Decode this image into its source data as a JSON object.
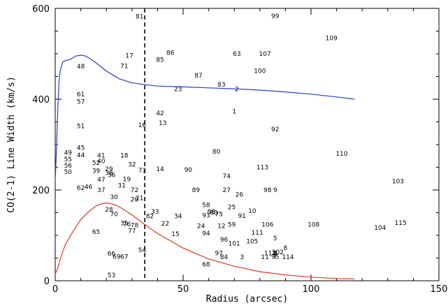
{
  "chart_data": {
    "type": "scatter",
    "title": "",
    "xlabel": "Radius (arcsec)",
    "ylabel": "CO(2-1) Line Width (km/s)",
    "xlim": [
      0,
      150
    ],
    "ylim": [
      0,
      600
    ],
    "x_ticks": [
      0,
      50,
      100,
      150
    ],
    "y_ticks": [
      0,
      200,
      400,
      600
    ],
    "x_tick_labels": [
      "0",
      "50",
      "100",
      "150"
    ],
    "y_tick_labels": [
      "0",
      "200",
      "400",
      "600"
    ],
    "grid": false,
    "vertical_line": {
      "x": 35,
      "style": "dashed",
      "color": "#000000"
    },
    "points": [
      {
        "label": "1",
        "x": 70,
        "y": 373
      },
      {
        "label": "2",
        "x": 71,
        "y": 422
      },
      {
        "label": "3",
        "x": 73,
        "y": 52
      },
      {
        "label": "4",
        "x": 86,
        "y": 60
      },
      {
        "label": "5",
        "x": 86,
        "y": 94
      },
      {
        "label": "6",
        "x": 86,
        "y": 61
      },
      {
        "label": "7",
        "x": 86,
        "y": 53
      },
      {
        "label": "8",
        "x": 90,
        "y": 72
      },
      {
        "label": "9",
        "x": 86,
        "y": 200
      },
      {
        "label": "10",
        "x": 77,
        "y": 154
      },
      {
        "label": "11",
        "x": 82,
        "y": 52
      },
      {
        "label": "12",
        "x": 65,
        "y": 121
      },
      {
        "label": "13",
        "x": 42,
        "y": 348
      },
      {
        "label": "14",
        "x": 41,
        "y": 246
      },
      {
        "label": "15",
        "x": 47,
        "y": 103
      },
      {
        "label": "16",
        "x": 34,
        "y": 343
      },
      {
        "label": "17",
        "x": 29,
        "y": 496
      },
      {
        "label": "18",
        "x": 27,
        "y": 276
      },
      {
        "label": "19",
        "x": 28,
        "y": 224
      },
      {
        "label": "20",
        "x": 31,
        "y": 179
      },
      {
        "label": "21",
        "x": 33,
        "y": 182
      },
      {
        "label": "22",
        "x": 43,
        "y": 126
      },
      {
        "label": "23",
        "x": 48,
        "y": 422
      },
      {
        "label": "24",
        "x": 57,
        "y": 121
      },
      {
        "label": "25",
        "x": 69,
        "y": 162
      },
      {
        "label": "26",
        "x": 72,
        "y": 190
      },
      {
        "label": "27",
        "x": 67,
        "y": 200
      },
      {
        "label": "28",
        "x": 21,
        "y": 157
      },
      {
        "label": "29",
        "x": 21,
        "y": 246
      },
      {
        "label": "30",
        "x": 23,
        "y": 185
      },
      {
        "label": "31",
        "x": 26,
        "y": 210
      },
      {
        "label": "32",
        "x": 30,
        "y": 256
      },
      {
        "label": "33",
        "x": 39,
        "y": 152
      },
      {
        "label": "34",
        "x": 48,
        "y": 142
      },
      {
        "label": "35",
        "x": 27,
        "y": 127
      },
      {
        "label": "36",
        "x": 22,
        "y": 233
      },
      {
        "label": "37",
        "x": 18,
        "y": 200
      },
      {
        "label": "38",
        "x": 21,
        "y": 238
      },
      {
        "label": "39",
        "x": 16,
        "y": 242
      },
      {
        "label": "40",
        "x": 18,
        "y": 264
      },
      {
        "label": "41",
        "x": 18,
        "y": 276
      },
      {
        "label": "42",
        "x": 41,
        "y": 369
      },
      {
        "label": "44",
        "x": 10,
        "y": 277
      },
      {
        "label": "45",
        "x": 10,
        "y": 293
      },
      {
        "label": "46",
        "x": 13,
        "y": 207
      },
      {
        "label": "47",
        "x": 18,
        "y": 223
      },
      {
        "label": "48",
        "x": 10,
        "y": 472
      },
      {
        "label": "49",
        "x": 5,
        "y": 282
      },
      {
        "label": "50",
        "x": 5,
        "y": 240
      },
      {
        "label": "51",
        "x": 10,
        "y": 341
      },
      {
        "label": "52",
        "x": 16,
        "y": 260
      },
      {
        "label": "53",
        "x": 22,
        "y": 12
      },
      {
        "label": "54",
        "x": 34,
        "y": 68
      },
      {
        "label": "55",
        "x": 5,
        "y": 268
      },
      {
        "label": "56",
        "x": 5,
        "y": 254
      },
      {
        "label": "57",
        "x": 10,
        "y": 395
      },
      {
        "label": "58",
        "x": 59,
        "y": 167
      },
      {
        "label": "59",
        "x": 69,
        "y": 124
      },
      {
        "label": "60",
        "x": 62,
        "y": 150
      },
      {
        "label": "61",
        "x": 10,
        "y": 411
      },
      {
        "label": "62",
        "x": 10,
        "y": 205
      },
      {
        "label": "63",
        "x": 71,
        "y": 500
      },
      {
        "label": "65",
        "x": 16,
        "y": 108
      },
      {
        "label": "66",
        "x": 22,
        "y": 60
      },
      {
        "label": "67",
        "x": 27,
        "y": 53
      },
      {
        "label": "68",
        "x": 59,
        "y": 36
      },
      {
        "label": "69",
        "x": 24,
        "y": 53
      },
      {
        "label": "70",
        "x": 23,
        "y": 147
      },
      {
        "label": "71",
        "x": 27,
        "y": 473
      },
      {
        "label": "72",
        "x": 31,
        "y": 200
      },
      {
        "label": "73",
        "x": 34,
        "y": 243
      },
      {
        "label": "74",
        "x": 67,
        "y": 231
      },
      {
        "label": "75",
        "x": 64,
        "y": 147
      },
      {
        "label": "76",
        "x": 28,
        "y": 125
      },
      {
        "label": "77",
        "x": 30,
        "y": 110
      },
      {
        "label": "78",
        "x": 31,
        "y": 122
      },
      {
        "label": "80",
        "x": 63,
        "y": 285
      },
      {
        "label": "81",
        "x": 33,
        "y": 582
      },
      {
        "label": "82",
        "x": 37,
        "y": 142
      },
      {
        "label": "83",
        "x": 65,
        "y": 432
      },
      {
        "label": "84",
        "x": 66,
        "y": 52
      },
      {
        "label": "85",
        "x": 41,
        "y": 487
      },
      {
        "label": "86",
        "x": 45,
        "y": 502
      },
      {
        "label": "87",
        "x": 56,
        "y": 452
      },
      {
        "label": "88",
        "x": 61,
        "y": 152
      },
      {
        "label": "89",
        "x": 55,
        "y": 200
      },
      {
        "label": "90",
        "x": 52,
        "y": 245
      },
      {
        "label": "91",
        "x": 73,
        "y": 143
      },
      {
        "label": "92",
        "x": 86,
        "y": 334
      },
      {
        "label": "93",
        "x": 59,
        "y": 144
      },
      {
        "label": "94",
        "x": 59,
        "y": 105
      },
      {
        "label": "95",
        "x": 86,
        "y": 53
      },
      {
        "label": "96",
        "x": 66,
        "y": 91
      },
      {
        "label": "97",
        "x": 64,
        "y": 61
      },
      {
        "label": "98",
        "x": 83,
        "y": 200
      },
      {
        "label": "99",
        "x": 86,
        "y": 583
      },
      {
        "label": "100",
        "x": 80,
        "y": 462
      },
      {
        "label": "101",
        "x": 70,
        "y": 82
      },
      {
        "label": "102",
        "x": 87,
        "y": 63
      },
      {
        "label": "103",
        "x": 134,
        "y": 219
      },
      {
        "label": "104",
        "x": 127,
        "y": 117
      },
      {
        "label": "105",
        "x": 77,
        "y": 87
      },
      {
        "label": "106",
        "x": 83,
        "y": 124
      },
      {
        "label": "107",
        "x": 82,
        "y": 500
      },
      {
        "label": "108",
        "x": 101,
        "y": 124
      },
      {
        "label": "109",
        "x": 108,
        "y": 535
      },
      {
        "label": "110",
        "x": 112,
        "y": 280
      },
      {
        "label": "111",
        "x": 79,
        "y": 106
      },
      {
        "label": "112",
        "x": 84,
        "y": 61
      },
      {
        "label": "113",
        "x": 81,
        "y": 250
      },
      {
        "label": "114",
        "x": 91,
        "y": 52
      },
      {
        "label": "115",
        "x": 135,
        "y": 128
      }
    ],
    "series": [
      {
        "color": "#2040d0",
        "style": "line",
        "x": [
          0,
          0.5,
          1,
          1.5,
          2,
          3,
          4,
          5,
          6,
          8,
          10,
          12,
          15,
          20,
          25,
          30,
          35,
          40,
          50,
          60,
          70,
          80,
          90,
          100,
          110,
          117
        ],
        "y": [
          220,
          290,
          380,
          440,
          465,
          482,
          485,
          486,
          488,
          495,
          497,
          495,
          484,
          462,
          445,
          436,
          432,
          429,
          427,
          425,
          423,
          420,
          416,
          411,
          405,
          400
        ]
      },
      {
        "color": "#e03a20",
        "style": "line",
        "x": [
          0,
          1,
          2,
          3,
          4,
          6,
          8,
          10,
          13,
          16,
          19,
          21,
          24,
          27,
          30,
          35,
          40,
          50,
          60,
          70,
          80,
          90,
          100,
          110,
          117
        ],
        "y": [
          15,
          28,
          48,
          65,
          80,
          100,
          118,
          135,
          152,
          165,
          171,
          171,
          166,
          156,
          145,
          124,
          104,
          72,
          48,
          32,
          20,
          13,
          8,
          5,
          4
        ]
      }
    ]
  }
}
